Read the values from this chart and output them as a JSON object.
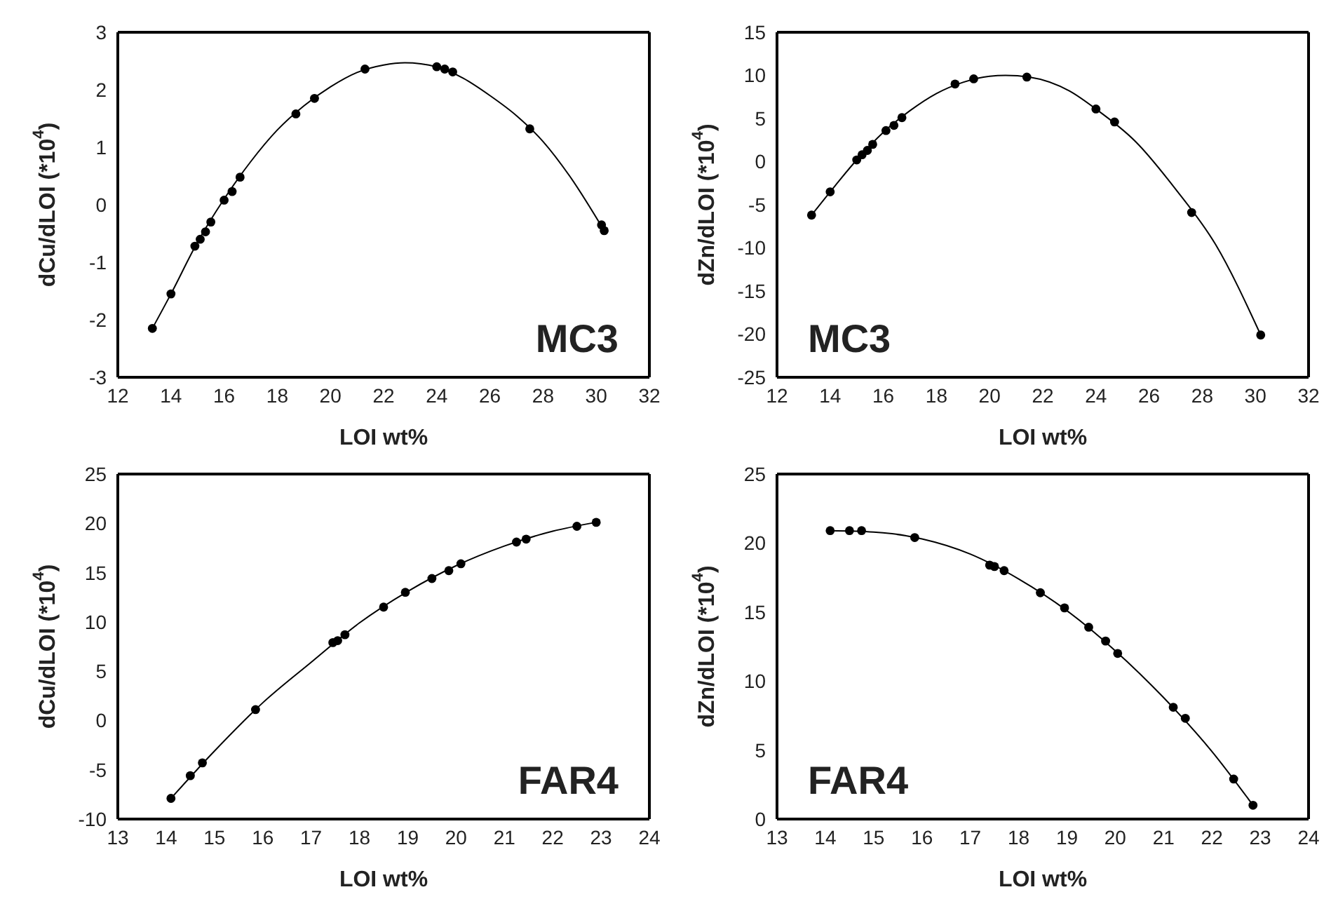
{
  "chart_data": [
    {
      "type": "scatter",
      "xlabel": "LOI wt%",
      "ylabel": "dCu/dLOI (*10$^{4}$)",
      "annotations": [
        "MC3"
      ],
      "xlim": [
        12,
        32
      ],
      "xticks": [
        12,
        14,
        16,
        18,
        20,
        22,
        24,
        26,
        28,
        30,
        32
      ],
      "ylim": [
        -3,
        3
      ],
      "yticks": [
        -3,
        -2,
        -1,
        0,
        1,
        2,
        3
      ],
      "series": [
        {
          "type": "scatter",
          "color": "#000000",
          "marker": "circle",
          "x": [
            13.3,
            14.0,
            14.9,
            15.1,
            15.3,
            15.5,
            16.0,
            16.3,
            16.6,
            18.7,
            19.4,
            21.3,
            24.0,
            24.3,
            24.6,
            27.5,
            30.2,
            30.3
          ],
          "values": [
            -2.15,
            -1.55,
            -0.72,
            -0.6,
            -0.47,
            -0.3,
            0.08,
            0.23,
            0.48,
            1.58,
            1.85,
            2.36,
            2.4,
            2.36,
            2.31,
            1.32,
            -0.35,
            -0.45
          ]
        },
        {
          "type": "line",
          "color": "#000000",
          "x": [
            13.3,
            14,
            15,
            16,
            17,
            18,
            19,
            20,
            21,
            22,
            22.8,
            24,
            25,
            26,
            27,
            28,
            29,
            30.3
          ],
          "values": [
            -2.15,
            -1.55,
            -0.65,
            0.1,
            0.75,
            1.3,
            1.72,
            2.05,
            2.3,
            2.43,
            2.47,
            2.4,
            2.2,
            1.9,
            1.55,
            1.1,
            0.5,
            -0.45
          ]
        }
      ]
    },
    {
      "type": "scatter",
      "xlabel": "LOI wt%",
      "ylabel": "dZn/dLOI (*10$^{4}$)",
      "annotations": [
        "MC3"
      ],
      "xlim": [
        12,
        32
      ],
      "xticks": [
        12,
        14,
        16,
        18,
        20,
        22,
        24,
        26,
        28,
        30,
        32
      ],
      "ylim": [
        -25,
        15
      ],
      "yticks": [
        -25,
        -20,
        -15,
        -10,
        -5,
        0,
        5,
        10,
        15
      ],
      "series": [
        {
          "type": "scatter",
          "color": "#000000",
          "marker": "circle",
          "x": [
            13.3,
            14.0,
            15.0,
            15.2,
            15.4,
            15.6,
            16.1,
            16.4,
            16.7,
            18.7,
            19.4,
            21.4,
            24.0,
            24.7,
            27.6,
            30.2
          ],
          "values": [
            -6.2,
            -3.5,
            0.2,
            0.8,
            1.3,
            2.0,
            3.6,
            4.2,
            5.1,
            9.0,
            9.6,
            9.8,
            6.1,
            4.6,
            -5.9,
            -20.1
          ]
        },
        {
          "type": "line",
          "color": "#000000",
          "x": [
            13.3,
            14,
            15,
            16,
            17,
            18,
            19,
            20,
            20.6,
            21.5,
            23,
            24,
            25.5,
            27,
            28.5,
            30.2
          ],
          "values": [
            -6.2,
            -3.5,
            0.2,
            3.4,
            5.9,
            7.9,
            9.2,
            9.9,
            10.0,
            9.8,
            8.2,
            6.1,
            2.3,
            -3.2,
            -9.6,
            -20.1
          ]
        }
      ]
    },
    {
      "type": "scatter",
      "xlabel": "LOI wt%",
      "ylabel": "dCu/dLOI (*10$^{4}$)",
      "annotations": [
        "FAR4"
      ],
      "xlim": [
        13,
        24
      ],
      "xticks": [
        13,
        14,
        15,
        16,
        17,
        18,
        19,
        20,
        21,
        22,
        23,
        24
      ],
      "ylim": [
        -10,
        25
      ],
      "yticks": [
        -10,
        -5,
        0,
        5,
        10,
        15,
        20,
        25
      ],
      "series": [
        {
          "type": "scatter",
          "color": "#000000",
          "marker": "circle",
          "x": [
            14.1,
            14.5,
            14.75,
            15.85,
            17.45,
            17.55,
            17.7,
            18.5,
            18.95,
            19.5,
            19.85,
            20.1,
            21.25,
            21.45,
            22.5,
            22.9
          ],
          "values": [
            -7.9,
            -5.6,
            -4.3,
            1.1,
            7.9,
            8.1,
            8.7,
            11.5,
            13.0,
            14.4,
            15.2,
            15.9,
            18.1,
            18.4,
            19.7,
            20.1
          ]
        },
        {
          "type": "line",
          "color": "#000000",
          "x": [
            14.1,
            15,
            16,
            17,
            18,
            19,
            20,
            21,
            22,
            22.9
          ],
          "values": [
            -7.9,
            -3.1,
            1.8,
            5.9,
            9.9,
            13.1,
            15.7,
            17.7,
            19.2,
            20.1
          ]
        }
      ]
    },
    {
      "type": "scatter",
      "xlabel": "LOI wt%",
      "ylabel": "dZn/dLOI (*10$^{4}$)",
      "annotations": [
        "FAR4"
      ],
      "xlim": [
        13,
        24
      ],
      "xticks": [
        13,
        14,
        15,
        16,
        17,
        18,
        19,
        20,
        21,
        22,
        23,
        24
      ],
      "ylim": [
        0,
        25
      ],
      "yticks": [
        0,
        5,
        10,
        15,
        20,
        25
      ],
      "series": [
        {
          "type": "scatter",
          "color": "#000000",
          "marker": "circle",
          "x": [
            14.1,
            14.5,
            14.75,
            15.85,
            17.4,
            17.5,
            17.7,
            18.45,
            18.95,
            19.45,
            19.8,
            20.05,
            21.2,
            21.45,
            22.45,
            22.85
          ],
          "values": [
            20.9,
            20.9,
            20.9,
            20.4,
            18.4,
            18.3,
            18.0,
            16.4,
            15.3,
            13.9,
            12.9,
            12.0,
            8.1,
            7.3,
            2.9,
            1.0
          ]
        },
        {
          "type": "line",
          "color": "#000000",
          "x": [
            14.1,
            15,
            16,
            17,
            18,
            19,
            20,
            21,
            22,
            22.85
          ],
          "values": [
            20.9,
            20.8,
            20.3,
            19.2,
            17.4,
            15.1,
            12.2,
            8.8,
            4.9,
            1.0
          ]
        }
      ]
    }
  ]
}
